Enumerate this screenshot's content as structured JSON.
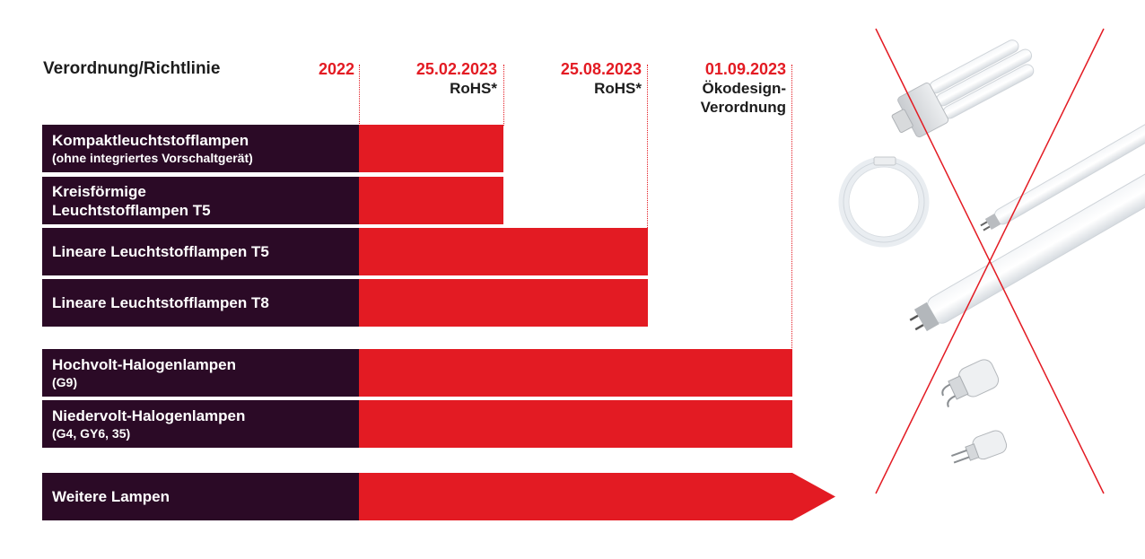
{
  "header": {
    "title": "Verordnung/Richtlinie"
  },
  "milestones": [
    {
      "date": "2022",
      "note": ""
    },
    {
      "date": "25.02.2023",
      "note": "RoHS*"
    },
    {
      "date": "25.08.2023",
      "note": "RoHS*"
    },
    {
      "date": "01.09.2023",
      "note": "Ökodesign-Verordnung"
    }
  ],
  "rows": [
    {
      "label": "Kompaktleuchtstofflampen",
      "sublabel": "(ohne integriertes Vorschaltgerät)",
      "ends_at": "25.02.2023"
    },
    {
      "label": "Kreisförmige Leuchtstofflampen T5",
      "sublabel": "",
      "ends_at": "25.02.2023"
    },
    {
      "label": "Lineare Leuchtstofflampen T5",
      "sublabel": "",
      "ends_at": "25.08.2023"
    },
    {
      "label": "Lineare Leuchtstofflampen T8",
      "sublabel": "",
      "ends_at": "25.08.2023"
    },
    {
      "label": "Hochvolt-Halogenlampen",
      "sublabel": "(G9)",
      "ends_at": "01.09.2023"
    },
    {
      "label": "Niedervolt-Halogenlampen",
      "sublabel": "(G4, GY6, 35)",
      "ends_at": "01.09.2023"
    },
    {
      "label": "Weitere Lampen",
      "sublabel": "",
      "ends_at": ""
    }
  ],
  "colors": {
    "accent": "#e31b23",
    "label_bg": "#2b0a26",
    "text": "#1c1c1c"
  },
  "illustration": {
    "icons": [
      "compact-fluorescent-lamp-icon",
      "circular-fluorescent-lamp-icon",
      "linear-tube-t5-icon",
      "linear-tube-t8-icon",
      "halogen-g9-icon",
      "halogen-g4-icon",
      "red-cross-icon"
    ]
  }
}
